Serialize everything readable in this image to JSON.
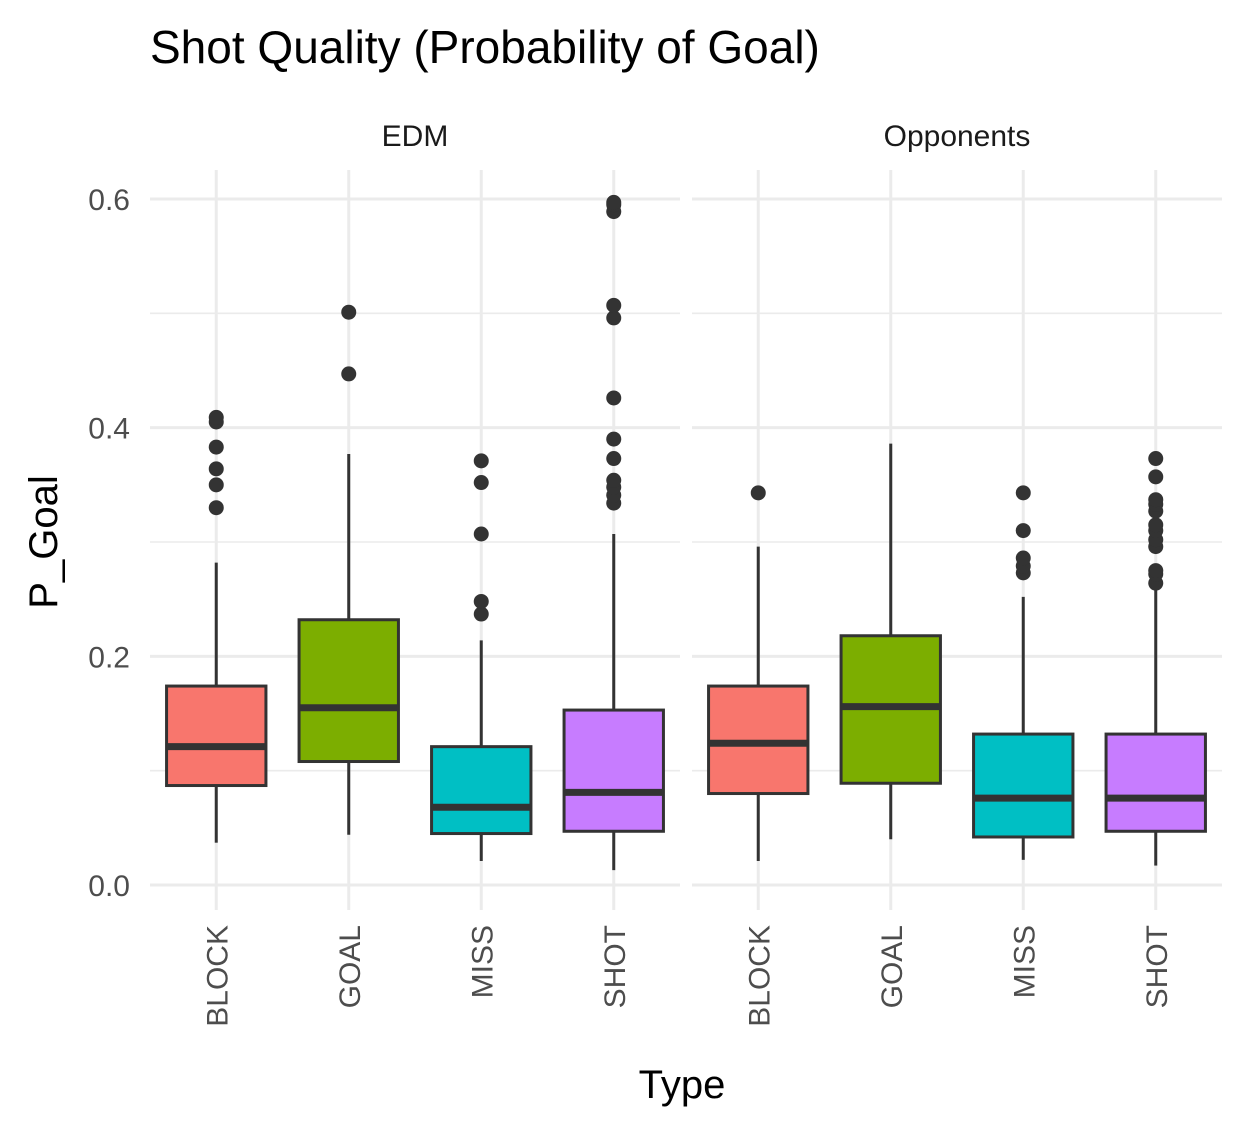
{
  "chart_data": {
    "type": "boxplot",
    "title": "Shot Quality (Probability of Goal)",
    "xlabel": "Type",
    "ylabel": "P_Goal",
    "ylim": [
      -0.01,
      0.62
    ],
    "yticks": [
      "0.0",
      "0.2",
      "0.4",
      "0.6"
    ],
    "ytick_values": [
      0.0,
      0.2,
      0.4,
      0.6
    ],
    "categories": [
      "BLOCK",
      "GOAL",
      "MISS",
      "SHOT"
    ],
    "colors": {
      "BLOCK": "#F8766D",
      "GOAL": "#7CAE00",
      "MISS": "#00BFC4",
      "SHOT": "#C77CFF"
    },
    "grid": true,
    "legend": "none",
    "panels": [
      {
        "name": "EDM",
        "boxes": [
          {
            "category": "BLOCK",
            "min": 0.037,
            "q1": 0.087,
            "median": 0.121,
            "q3": 0.174,
            "max": 0.282,
            "outliers": [
              0.33,
              0.35,
              0.364,
              0.383,
              0.405,
              0.409
            ]
          },
          {
            "category": "GOAL",
            "min": 0.044,
            "q1": 0.108,
            "median": 0.155,
            "q3": 0.232,
            "max": 0.377,
            "outliers": [
              0.447,
              0.501
            ]
          },
          {
            "category": "MISS",
            "min": 0.021,
            "q1": 0.045,
            "median": 0.068,
            "q3": 0.121,
            "max": 0.214,
            "outliers": [
              0.237,
              0.248,
              0.307,
              0.352,
              0.371
            ]
          },
          {
            "category": "SHOT",
            "min": 0.013,
            "q1": 0.047,
            "median": 0.081,
            "q3": 0.153,
            "max": 0.307,
            "outliers": [
              0.334,
              0.341,
              0.348,
              0.354,
              0.373,
              0.39,
              0.426,
              0.496,
              0.507,
              0.589,
              0.595,
              0.597
            ]
          }
        ]
      },
      {
        "name": "Opponents",
        "boxes": [
          {
            "category": "BLOCK",
            "min": 0.021,
            "q1": 0.08,
            "median": 0.124,
            "q3": 0.174,
            "max": 0.296,
            "outliers": [
              0.343
            ]
          },
          {
            "category": "GOAL",
            "min": 0.04,
            "q1": 0.089,
            "median": 0.156,
            "q3": 0.218,
            "max": 0.386,
            "outliers": []
          },
          {
            "category": "MISS",
            "min": 0.022,
            "q1": 0.042,
            "median": 0.076,
            "q3": 0.132,
            "max": 0.252,
            "outliers": [
              0.273,
              0.279,
              0.286,
              0.31,
              0.343
            ]
          },
          {
            "category": "SHOT",
            "min": 0.017,
            "q1": 0.047,
            "median": 0.076,
            "q3": 0.132,
            "max": 0.259,
            "outliers": [
              0.264,
              0.272,
              0.275,
              0.296,
              0.302,
              0.31,
              0.315,
              0.327,
              0.333,
              0.337,
              0.357,
              0.373
            ]
          }
        ]
      }
    ]
  }
}
